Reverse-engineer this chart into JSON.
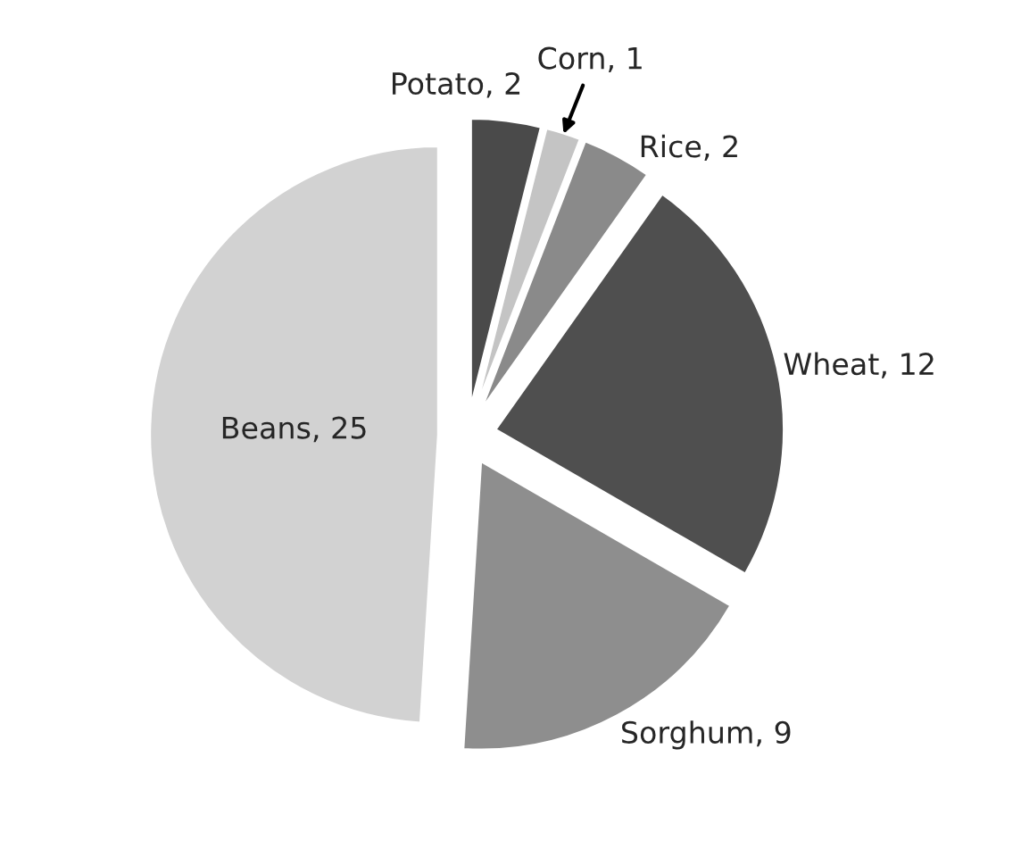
{
  "chart_data": {
    "type": "pie",
    "categories": [
      "Potato, 2",
      "Corn, 1",
      "Rice, 2",
      "Wheat, 12",
      "Sorghum, 9",
      "Beans, 25"
    ],
    "values": [
      2,
      1,
      2,
      12,
      9,
      25
    ],
    "colors": [
      "#4a4a4a",
      "#c4c4c4",
      "#8a8a8a",
      "#4f4f4f",
      "#8e8e8e",
      "#d2d2d2"
    ]
  }
}
